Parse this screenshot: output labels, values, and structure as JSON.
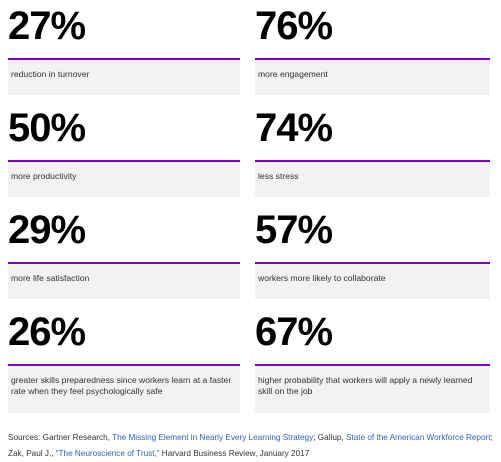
{
  "stats": [
    {
      "number": "27%",
      "text": "reduction in turnover"
    },
    {
      "number": "76%",
      "text": "more engagement"
    },
    {
      "number": "50%",
      "text": "more productivity"
    },
    {
      "number": "74%",
      "text": "less stress"
    },
    {
      "number": "29%",
      "text": "more life satisfaction"
    },
    {
      "number": "57%",
      "text": "workers more likely to collaborate"
    },
    {
      "number": "26%",
      "text": "greater skills preparedness since workers learn at a faster rate when they feel psychologically safe"
    },
    {
      "number": "67%",
      "text": "higher probability that workers will apply a newly learned skill on the job"
    }
  ],
  "sources": [
    [
      {
        "text": "Sources: Gartner Research, "
      },
      {
        "text": "The Missing Element in Nearly Every Learning Strategy",
        "link": true
      },
      {
        "text": "; Gallup, "
      },
      {
        "text": "State of the American Workforce Report",
        "link": true
      },
      {
        "text": ";"
      }
    ],
    [
      {
        "text": "Zak, Paul J., "
      },
      {
        "text": "“The Neuroscience of Trust,”",
        "link": true
      },
      {
        "text": " Harvard Business Review, January 2017"
      }
    ]
  ]
}
